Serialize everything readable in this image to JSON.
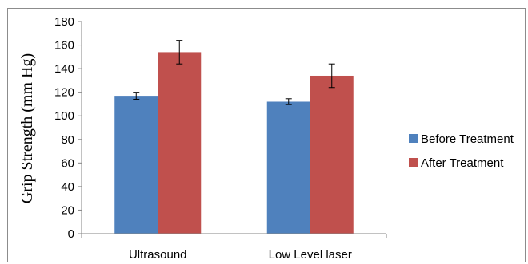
{
  "chart_data": {
    "type": "bar",
    "title": "",
    "xlabel": "",
    "ylabel": "Grip Strength (mm Hg)",
    "ylim": [
      0,
      180
    ],
    "yticks": [
      0,
      20,
      40,
      60,
      80,
      100,
      120,
      140,
      160,
      180
    ],
    "categories": [
      "Ultrasound",
      "Low Level laser"
    ],
    "series": [
      {
        "name": "Before Treatment",
        "color": "#4f81bd",
        "values": [
          117,
          112
        ],
        "errors": [
          3,
          2.5
        ]
      },
      {
        "name": "After Treatment",
        "color": "#c0504d",
        "values": [
          154,
          134
        ],
        "errors": [
          10,
          10
        ]
      }
    ],
    "grid": false,
    "legend_position": "right",
    "error_bars": true
  }
}
